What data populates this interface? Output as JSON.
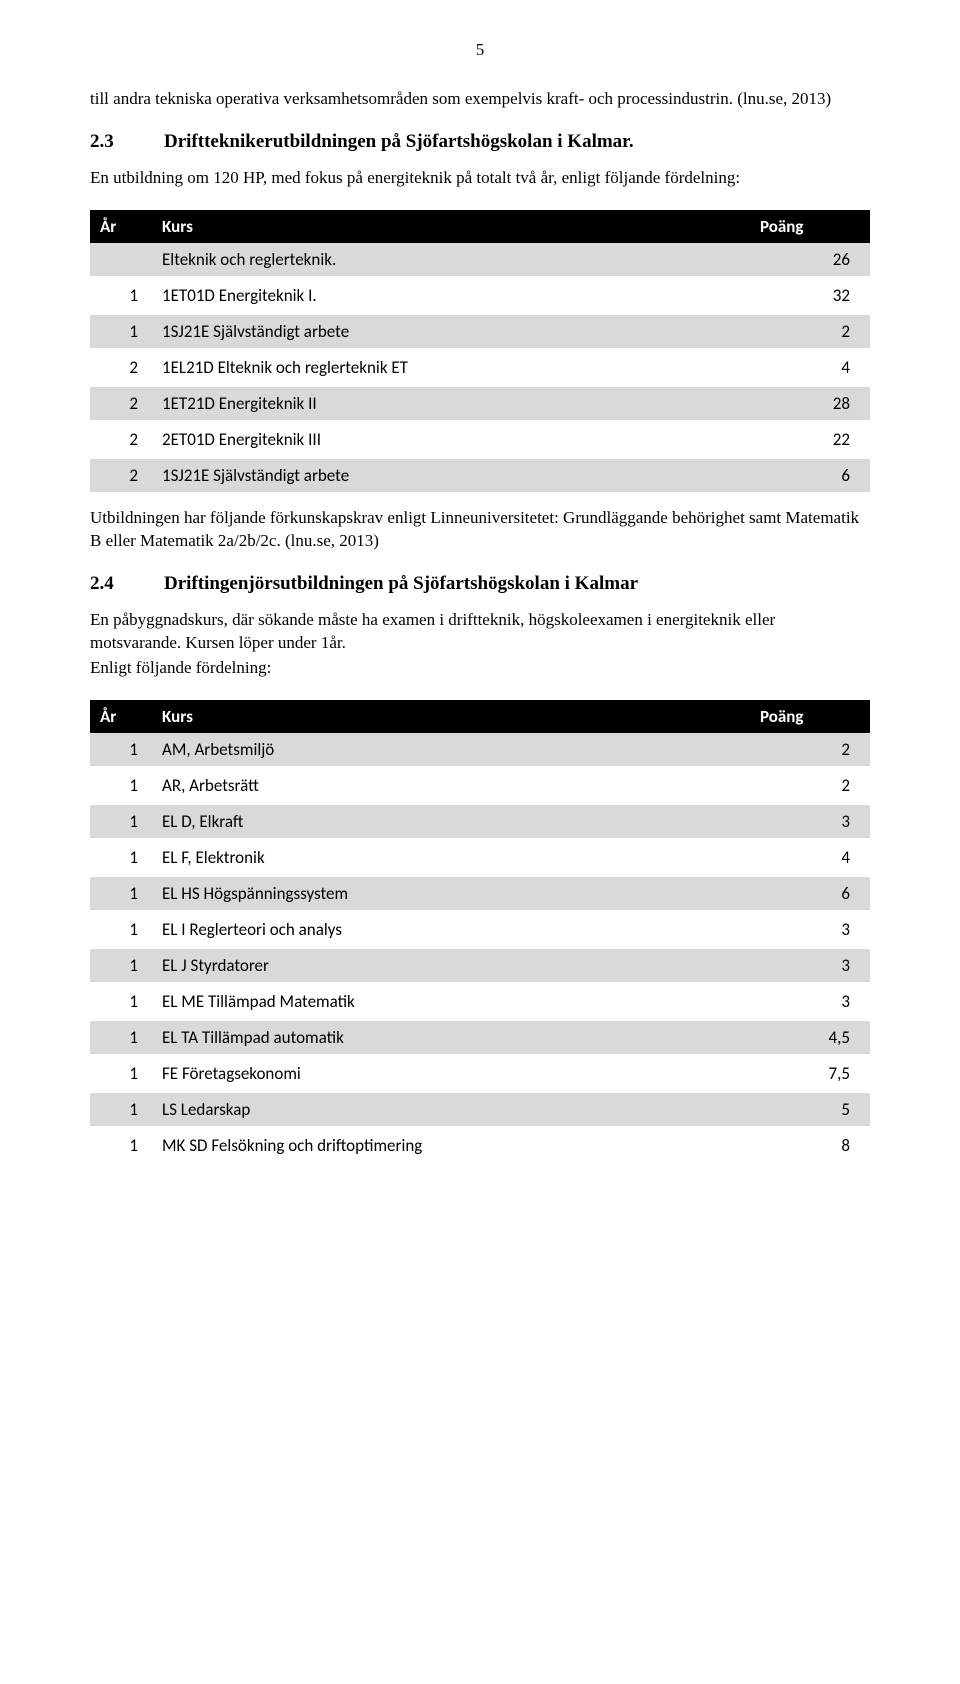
{
  "page_number": "5",
  "para1": "till andra tekniska operativa verksamhetsområden som exempelvis kraft- och processindustrin. (lnu.se, 2013)",
  "section1": {
    "number": "2.3",
    "title": "Driftteknikerutbildningen på Sjöfartshögskolan i Kalmar."
  },
  "para2": "En utbildning om 120 HP, med fokus på energiteknik på totalt två år, enligt följande fördelning:",
  "table1": {
    "headers": {
      "year": "År",
      "course": "Kurs",
      "points": "Poäng"
    },
    "rows": [
      {
        "year": "",
        "course": "Elteknik och reglerteknik.",
        "points": "26",
        "shaded": true
      },
      {
        "year": "1",
        "course": "1ET01D Energiteknik I.",
        "points": "32",
        "shaded": false
      },
      {
        "year": "1",
        "course": "1SJ21E Självständigt arbete",
        "points": "2",
        "shaded": true
      },
      {
        "year": "2",
        "course": "1EL21D Elteknik och reglerteknik ET",
        "points": "4",
        "shaded": false
      },
      {
        "year": "2",
        "course": "1ET21D Energiteknik II",
        "points": "28",
        "shaded": true
      },
      {
        "year": "2",
        "course": "2ET01D Energiteknik III",
        "points": "22",
        "shaded": false
      },
      {
        "year": "2",
        "course": "1SJ21E Självständigt arbete",
        "points": "6",
        "shaded": true
      }
    ]
  },
  "para3": "Utbildningen har följande förkunskapskrav enligt Linneuniversitetet: Grundläggande behörighet samt Matematik B eller Matematik 2a/2b/2c. (lnu.se, 2013)",
  "section2": {
    "number": "2.4",
    "title": "Driftingenjörsutbildningen på Sjöfartshögskolan i Kalmar"
  },
  "para4": "En påbyggnadskurs, där sökande måste ha examen i driftteknik, högskoleexamen i energiteknik eller motsvarande. Kursen löper under 1år.",
  "para5": "Enligt följande fördelning:",
  "table2": {
    "headers": {
      "year": "År",
      "course": "Kurs",
      "points": "Poäng"
    },
    "rows": [
      {
        "year": "1",
        "course": "AM, Arbetsmiljö",
        "points": "2",
        "shaded": true
      },
      {
        "year": "1",
        "course": "AR, Arbetsrätt",
        "points": "2",
        "shaded": false
      },
      {
        "year": "1",
        "course": "EL D, Elkraft",
        "points": "3",
        "shaded": true
      },
      {
        "year": "1",
        "course": "EL F, Elektronik",
        "points": "4",
        "shaded": false
      },
      {
        "year": "1",
        "course": "EL HS Högspänningssystem",
        "points": "6",
        "shaded": true
      },
      {
        "year": "1",
        "course": "EL I Reglerteori och analys",
        "points": "3",
        "shaded": false
      },
      {
        "year": "1",
        "course": "EL J Styrdatorer",
        "points": "3",
        "shaded": true
      },
      {
        "year": "1",
        "course": "EL ME Tillämpad Matematik",
        "points": "3",
        "shaded": false
      },
      {
        "year": "1",
        "course": "EL TA Tillämpad automatik",
        "points": "4,5",
        "shaded": true
      },
      {
        "year": "1",
        "course": "FE Företagsekonomi",
        "points": "7,5",
        "shaded": false
      },
      {
        "year": "1",
        "course": "LS Ledarskap",
        "points": "5",
        "shaded": true
      },
      {
        "year": "1",
        "course": "MK SD Felsökning och driftoptimering",
        "points": "8",
        "shaded": false
      }
    ]
  },
  "colors": {
    "header_bg": "#000000",
    "header_fg": "#ffffff",
    "row_shaded": "#d9d9d9",
    "row_plain": "#ffffff",
    "page_bg": "#ffffff",
    "text": "#000000"
  },
  "fonts": {
    "body": "Times New Roman",
    "table": "Calibri"
  }
}
